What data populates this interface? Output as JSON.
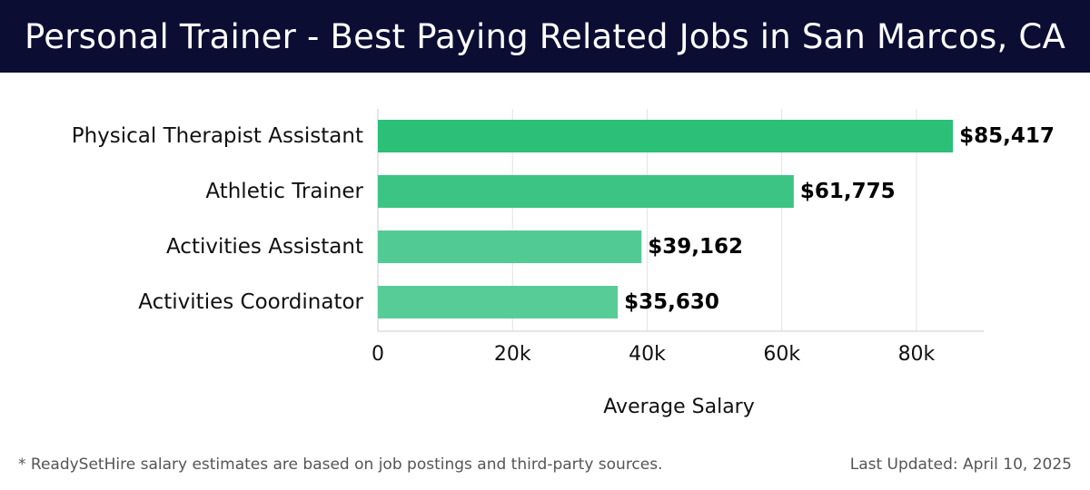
{
  "header": {
    "title": "Personal Trainer - Best Paying Related Jobs in San Marcos, CA"
  },
  "footer": {
    "note": "* ReadySetHire salary estimates are based on job postings and third-party sources.",
    "updated": "Last Updated: April 10, 2025"
  },
  "chart_data": {
    "type": "bar",
    "orientation": "horizontal",
    "title": "Personal Trainer - Best Paying Related Jobs in San Marcos, CA",
    "xlabel": "Average Salary",
    "ylabel": "",
    "xlim": [
      0,
      90000
    ],
    "x_ticks": [
      0,
      20000,
      40000,
      60000,
      80000
    ],
    "x_tick_labels": [
      "0",
      "20k",
      "40k",
      "60k",
      "80k"
    ],
    "grid": "vertical",
    "categories": [
      "Physical Therapist Assistant",
      "Athletic Trainer",
      "Activities Assistant",
      "Activities Coordinator"
    ],
    "values": [
      85417,
      61775,
      39162,
      35630
    ],
    "value_labels": [
      "$85,417",
      "$61,775",
      "$39,162",
      "$35,630"
    ],
    "colors": [
      "#2bbf78",
      "#3cc485",
      "#52ca94",
      "#58cc97"
    ]
  }
}
